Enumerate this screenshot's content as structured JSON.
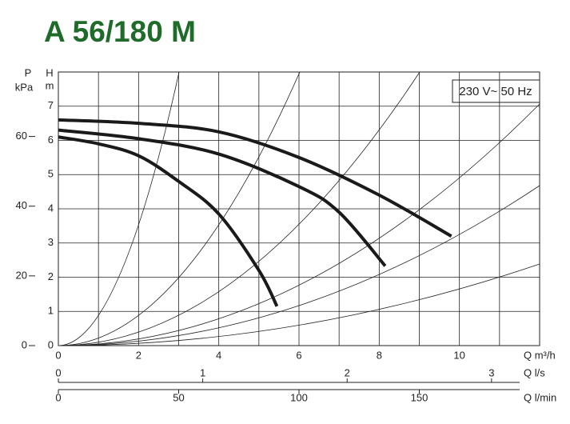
{
  "chart_data": {
    "type": "line",
    "title": "A 56/180 M",
    "annotation": "230 V~ 50 Hz",
    "y_label": [
      "H",
      "m"
    ],
    "y2_label": [
      "P",
      "kPa"
    ],
    "x_label": "Q m³/h",
    "x2_label": "Q l/s",
    "x3_label": "Q l/min",
    "xlim": [
      0,
      12
    ],
    "xticks": [
      0,
      2,
      4,
      6,
      8,
      10
    ],
    "xgrid_minor": [
      1,
      3,
      5,
      7,
      9,
      11
    ],
    "x2lim": [
      0,
      3.333
    ],
    "x2ticks": [
      0,
      1,
      2,
      3
    ],
    "x3lim": [
      0,
      200
    ],
    "x3ticks": [
      0,
      50,
      100,
      150
    ],
    "ylim": [
      0,
      8
    ],
    "yticks": [
      0,
      1,
      2,
      3,
      4,
      5,
      6,
      7
    ],
    "y2lim": [
      0,
      78.5
    ],
    "y2ticks": [
      0,
      20,
      40,
      60
    ],
    "grid": true,
    "series": [
      {
        "color": "#1a1a1a",
        "x": [
          0,
          1,
          2,
          3,
          4,
          5,
          5.45
        ],
        "values": [
          6.1,
          5.9,
          5.55,
          4.8,
          3.85,
          2.2,
          1.15
        ]
      },
      {
        "color": "#1a1a1a",
        "x": [
          0,
          2,
          4,
          6,
          7,
          8.15
        ],
        "values": [
          6.3,
          6.05,
          5.6,
          4.65,
          3.9,
          2.33
        ]
      },
      {
        "color": "#1a1a1a",
        "x": [
          0,
          2,
          4,
          6,
          8,
          9.8
        ],
        "values": [
          6.6,
          6.5,
          6.25,
          5.5,
          4.4,
          3.2
        ]
      }
    ]
  }
}
